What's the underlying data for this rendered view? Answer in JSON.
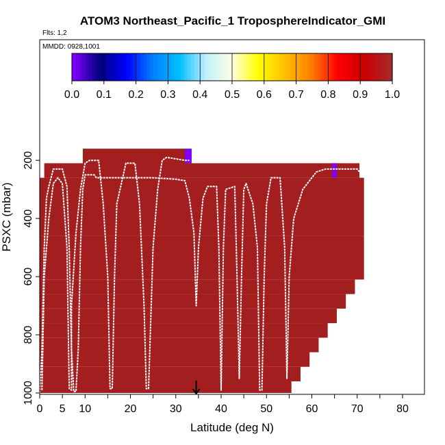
{
  "chart_data": {
    "type": "heatmap",
    "title": "ATOM3 Northeast_Pacific_1 TroposphereIndicator_GMI",
    "subtitle": "Flts: 1,2",
    "date_label": "MMDD: 0928,1001",
    "xlabel": "Latitude (deg N)",
    "ylabel": "PSXC (mbar)",
    "xlim": [
      0,
      85
    ],
    "ylim": [
      1000,
      0
    ],
    "x_ticks": [
      0,
      5,
      10,
      20,
      30,
      40,
      50,
      60,
      70,
      80
    ],
    "y_ticks": [
      200,
      400,
      600,
      800,
      1000
    ],
    "colorbar": {
      "min": 0.0,
      "max": 1.0,
      "tick_labels": [
        "0.0",
        "0.1",
        "0.2",
        "0.3",
        "0.4",
        "0.5",
        "0.6",
        "0.7",
        "0.8",
        "0.9",
        "1.0"
      ],
      "colors": [
        "#7f00ff",
        "#00007f",
        "#0000ff",
        "#007fff",
        "#00bfff",
        "#bfefff",
        "#ffffe0",
        "#ffff00",
        "#ffbf00",
        "#ff7f00",
        "#ff0000",
        "#cc0000",
        "#a52a2a"
      ]
    },
    "fill_color": "#a31f1f",
    "marker_latitude": 34.5,
    "cells": [
      {
        "x0": 9.5,
        "x1": 32.5,
        "p0": 160,
        "p1": 220,
        "value": 1.0
      },
      {
        "x0": 32.0,
        "x1": 33.5,
        "p0": 160,
        "p1": 210,
        "value": 0.0
      },
      {
        "x0": 1.0,
        "x1": 70.5,
        "p0": 210,
        "p1": 260,
        "value": 1.0
      },
      {
        "x0": 64.5,
        "x1": 65.5,
        "p0": 210,
        "p1": 260,
        "value": 0.0
      },
      {
        "x0": 0.0,
        "x1": 71.5,
        "p0": 260,
        "p1": 460,
        "value": 1.0
      },
      {
        "x0": 0.0,
        "x1": 71.5,
        "p0": 460,
        "p1": 610,
        "value": 1.0
      },
      {
        "x0": 0.0,
        "x1": 69.5,
        "p0": 610,
        "p1": 660,
        "value": 1.0
      },
      {
        "x0": 0.0,
        "x1": 67.5,
        "p0": 660,
        "p1": 710,
        "value": 1.0
      },
      {
        "x0": 0.0,
        "x1": 65.5,
        "p0": 710,
        "p1": 760,
        "value": 1.0
      },
      {
        "x0": 0.0,
        "x1": 63.5,
        "p0": 760,
        "p1": 810,
        "value": 1.0
      },
      {
        "x0": 0.0,
        "x1": 61.5,
        "p0": 810,
        "p1": 860,
        "value": 1.0
      },
      {
        "x0": 0.0,
        "x1": 59.5,
        "p0": 860,
        "p1": 910,
        "value": 1.0
      },
      {
        "x0": 0.0,
        "x1": 57.5,
        "p0": 910,
        "p1": 960,
        "value": 1.0
      },
      {
        "x0": 0.0,
        "x1": 55.5,
        "p0": 960,
        "p1": 1000,
        "value": 1.0
      },
      {
        "x0": 72.0,
        "x1": 72.5,
        "p0": 0,
        "p1": 0,
        "value": 1.0
      }
    ],
    "flight_tracks": [
      [
        [
          0,
          1000
        ],
        [
          0.5,
          850
        ],
        [
          1,
          500
        ],
        [
          1.5,
          330
        ],
        [
          2,
          290
        ],
        [
          3,
          230
        ],
        [
          5,
          230
        ],
        [
          6,
          290
        ],
        [
          6.5,
          500
        ],
        [
          7,
          850
        ],
        [
          7.5,
          995
        ],
        [
          8,
          995
        ],
        [
          8.5,
          850
        ],
        [
          9,
          500
        ],
        [
          9.5,
          300
        ],
        [
          10,
          250
        ],
        [
          12,
          250
        ],
        [
          12.5,
          260
        ],
        [
          25,
          260
        ],
        [
          30,
          265
        ],
        [
          32,
          270
        ],
        [
          33,
          330
        ],
        [
          34,
          450
        ],
        [
          34.5,
          700
        ],
        [
          35,
          500
        ],
        [
          36,
          330
        ],
        [
          37,
          290
        ],
        [
          39,
          290
        ],
        [
          39.5,
          500
        ],
        [
          40,
          990
        ],
        [
          40.5,
          500
        ],
        [
          41,
          300
        ],
        [
          43,
          290
        ],
        [
          43.5,
          600
        ],
        [
          44,
          950
        ],
        [
          44.5,
          600
        ],
        [
          45,
          300
        ],
        [
          45.5,
          280
        ],
        [
          47,
          350
        ],
        [
          48,
          500
        ],
        [
          48.5,
          990
        ],
        [
          49,
          990
        ],
        [
          49.5,
          600
        ],
        [
          50,
          350
        ],
        [
          51,
          260
        ],
        [
          53,
          260
        ],
        [
          54,
          500
        ],
        [
          54.5,
          950
        ],
        [
          55,
          600
        ],
        [
          56,
          400
        ],
        [
          58,
          300
        ],
        [
          60,
          260
        ],
        [
          61,
          240
        ],
        [
          63,
          230
        ],
        [
          70,
          230
        ],
        [
          70.5,
          240
        ]
      ],
      [
        [
          0.5,
          990
        ],
        [
          1,
          600
        ],
        [
          2,
          400
        ],
        [
          3,
          280
        ],
        [
          4,
          260
        ],
        [
          5,
          280
        ],
        [
          6,
          500
        ],
        [
          6.5,
          985
        ],
        [
          7,
          990
        ],
        [
          7,
          700
        ],
        [
          8,
          450
        ],
        [
          9,
          300
        ],
        [
          10,
          210
        ],
        [
          11,
          200
        ],
        [
          13,
          200
        ],
        [
          14,
          350
        ],
        [
          15,
          600
        ],
        [
          15.5,
          985
        ],
        [
          16,
          985
        ],
        [
          16.5,
          600
        ],
        [
          17,
          350
        ],
        [
          19,
          210
        ],
        [
          21,
          210
        ],
        [
          22,
          350
        ],
        [
          23,
          700
        ],
        [
          23.5,
          985
        ],
        [
          24,
          985
        ],
        [
          25,
          500
        ],
        [
          26,
          300
        ],
        [
          27,
          200
        ],
        [
          28,
          190
        ],
        [
          30,
          195
        ],
        [
          32,
          200
        ],
        [
          33,
          200
        ]
      ]
    ]
  }
}
